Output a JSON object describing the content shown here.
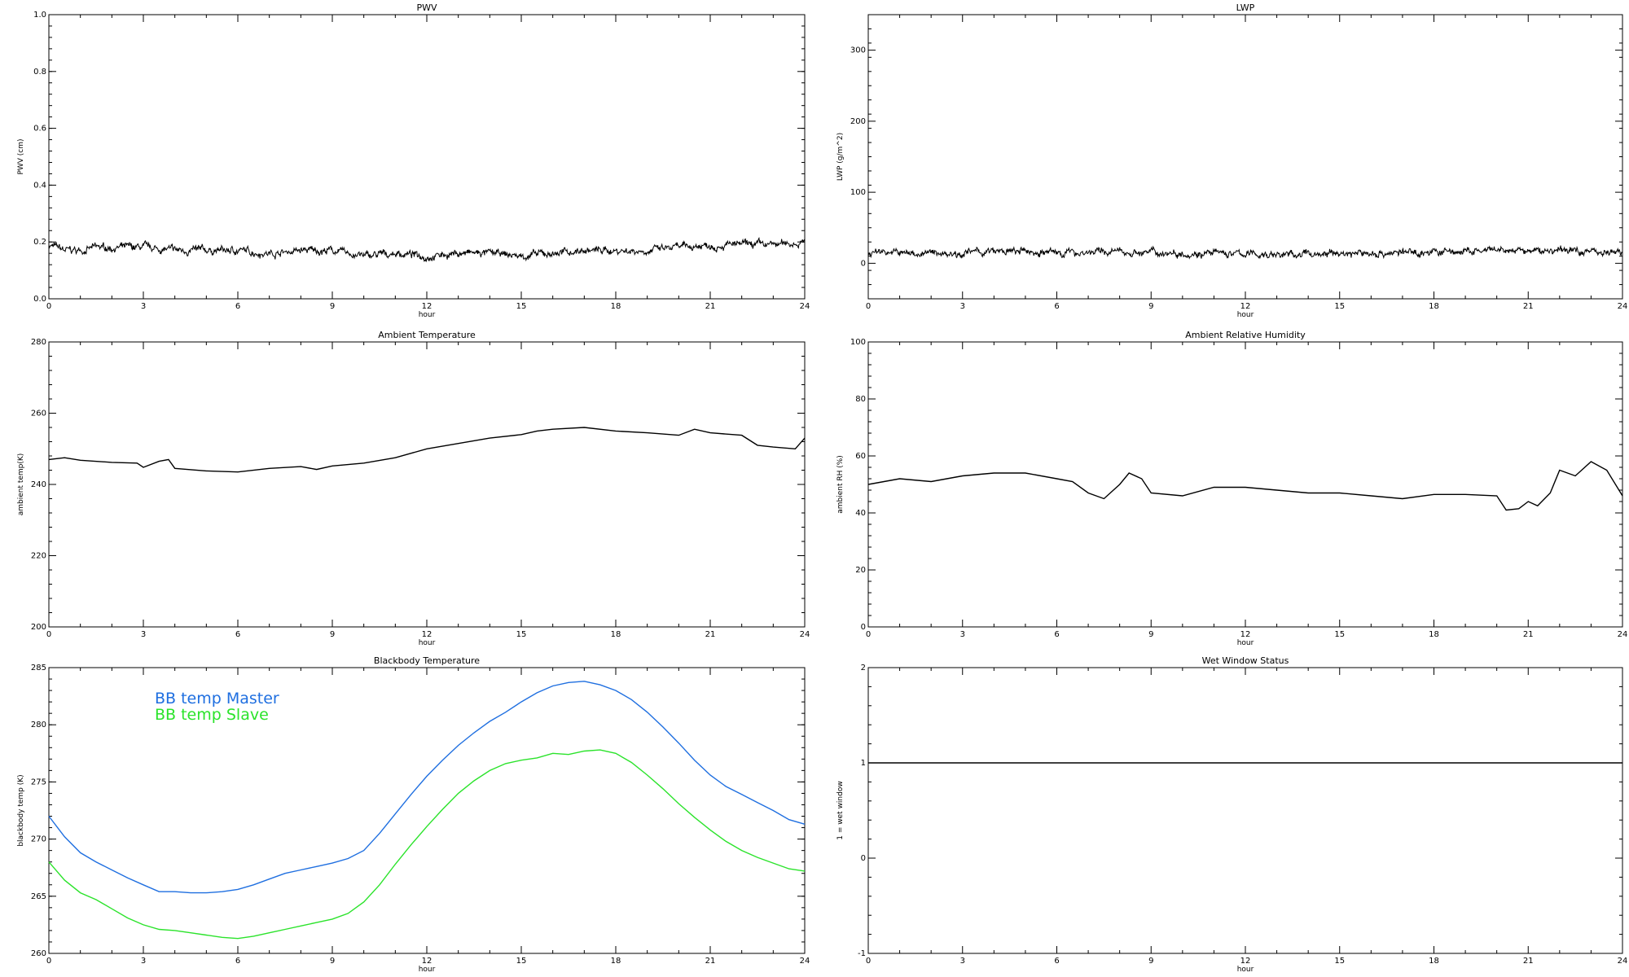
{
  "chart_data": [
    {
      "type": "line",
      "title": "PWV",
      "xlabel": "hour",
      "ylabel": "PWV (cm)",
      "xlim": [
        0,
        24
      ],
      "ylim": [
        0.0,
        1.0
      ],
      "xticks": [
        "0",
        "3",
        "6",
        "9",
        "12",
        "15",
        "18",
        "21",
        "24"
      ],
      "yticks": [
        "0.0",
        "0.2",
        "0.4",
        "0.6",
        "0.8",
        "1.0"
      ],
      "grid": false,
      "series": [
        {
          "color": "#000000",
          "noisy": true,
          "x": [
            0,
            0.5,
            1,
            1.5,
            2,
            3,
            4,
            5,
            6,
            7,
            8,
            9,
            10,
            11,
            12,
            13,
            14,
            15,
            16,
            17,
            18,
            19,
            20,
            21,
            22,
            23,
            24
          ],
          "y": [
            0.19,
            0.17,
            0.17,
            0.18,
            0.18,
            0.18,
            0.17,
            0.17,
            0.17,
            0.16,
            0.17,
            0.17,
            0.15,
            0.16,
            0.15,
            0.16,
            0.16,
            0.15,
            0.16,
            0.17,
            0.17,
            0.17,
            0.18,
            0.19,
            0.19,
            0.19,
            0.2
          ]
        }
      ]
    },
    {
      "type": "line",
      "title": "LWP",
      "xlabel": "hour",
      "ylabel": "LWP (g/m^2)",
      "xlim": [
        0,
        24
      ],
      "ylim": [
        -50,
        350
      ],
      "xticks": [
        "0",
        "3",
        "6",
        "9",
        "12",
        "15",
        "18",
        "21",
        "24"
      ],
      "yticks": [
        "0",
        "100",
        "200",
        "300"
      ],
      "ytick_values": [
        0,
        100,
        200,
        300
      ],
      "grid": false,
      "series": [
        {
          "color": "#000000",
          "noisy": true,
          "x": [
            0,
            0.5,
            1,
            2,
            3,
            4,
            5,
            6,
            7,
            8,
            9,
            10,
            11,
            12,
            13,
            14,
            15,
            16,
            17,
            18,
            19,
            20,
            21,
            22,
            23,
            24
          ],
          "y": [
            15,
            18,
            14,
            14,
            15,
            16,
            16,
            15,
            16,
            16,
            15,
            15,
            14,
            13,
            12,
            13,
            14,
            14,
            15,
            16,
            16,
            17,
            17,
            18,
            18,
            14
          ]
        }
      ]
    },
    {
      "type": "line",
      "title": "Ambient Temperature",
      "xlabel": "hour",
      "ylabel": "ambient temp(K)",
      "xlim": [
        0,
        24
      ],
      "ylim": [
        200,
        280
      ],
      "xticks": [
        "0",
        "3",
        "6",
        "9",
        "12",
        "15",
        "18",
        "21",
        "24"
      ],
      "yticks": [
        "200",
        "220",
        "240",
        "260",
        "280"
      ],
      "grid": false,
      "series": [
        {
          "color": "#000000",
          "noisy": false,
          "x": [
            0,
            0.5,
            1,
            2,
            2.8,
            3,
            3.5,
            3.8,
            4,
            5,
            6,
            7,
            8,
            8.5,
            9,
            10,
            11,
            12,
            13,
            14,
            15,
            15.5,
            16,
            17,
            18,
            19,
            20,
            20.5,
            21,
            22,
            22.5,
            23,
            23.7,
            24
          ],
          "y": [
            247,
            247.5,
            246.8,
            246.2,
            246,
            244.8,
            246.5,
            247,
            244.5,
            243.8,
            243.5,
            244.5,
            245,
            244.2,
            245.2,
            246,
            247.5,
            250,
            251.5,
            253,
            254,
            255,
            255.5,
            256,
            255,
            254.5,
            253.8,
            255.5,
            254.5,
            253.8,
            251,
            250.5,
            250,
            253
          ]
        }
      ]
    },
    {
      "type": "line",
      "title": "Ambient Relative Humidity",
      "xlabel": "hour",
      "ylabel": "ambient RH (%)",
      "xlim": [
        0,
        24
      ],
      "ylim": [
        0,
        100
      ],
      "xticks": [
        "0",
        "3",
        "6",
        "9",
        "12",
        "15",
        "18",
        "21",
        "24"
      ],
      "yticks": [
        "0",
        "20",
        "40",
        "60",
        "80",
        "100"
      ],
      "grid": false,
      "series": [
        {
          "color": "#000000",
          "noisy": false,
          "x": [
            0,
            1,
            2,
            3,
            4,
            5,
            6,
            6.5,
            7,
            7.5,
            8,
            8.3,
            8.7,
            9,
            10,
            11,
            12,
            13,
            14,
            15,
            16,
            17,
            18,
            19,
            20,
            20.3,
            20.7,
            21,
            21.3,
            21.7,
            22,
            22.5,
            23,
            23.5,
            24
          ],
          "y": [
            50,
            52,
            51,
            53,
            54,
            54,
            52,
            51,
            47,
            45,
            50,
            54,
            52,
            47,
            46,
            49,
            49,
            48,
            47,
            47,
            46,
            45,
            46.5,
            46.5,
            46,
            41,
            41.5,
            44,
            42.5,
            47,
            55,
            53,
            58,
            55,
            46
          ]
        }
      ]
    },
    {
      "type": "line",
      "title": "Blackbody Temperature",
      "xlabel": "hour",
      "ylabel": "blackbody temp (K)",
      "xlim": [
        0,
        24
      ],
      "ylim": [
        260,
        285
      ],
      "xticks": [
        "0",
        "3",
        "6",
        "9",
        "12",
        "15",
        "18",
        "21",
        "24"
      ],
      "yticks": [
        "260",
        "265",
        "270",
        "275",
        "280",
        "285"
      ],
      "grid": false,
      "legend": "top-left",
      "series": [
        {
          "name": "BB temp Master",
          "color": "#1f6fe0",
          "noisy": false,
          "x": [
            0,
            0.5,
            1,
            1.5,
            2,
            2.5,
            3,
            3.5,
            4,
            4.5,
            5,
            5.5,
            6,
            6.5,
            7,
            7.5,
            8,
            8.5,
            9,
            9.5,
            10,
            10.5,
            11,
            11.5,
            12,
            12.5,
            13,
            13.5,
            14,
            14.5,
            15,
            15.5,
            16,
            16.5,
            17,
            17.5,
            18,
            18.5,
            19,
            19.5,
            20,
            20.5,
            21,
            21.5,
            22,
            22.5,
            23,
            23.5,
            24
          ],
          "y": [
            272,
            270.2,
            268.8,
            268,
            267.3,
            266.6,
            266,
            265.4,
            265.4,
            265.3,
            265.3,
            265.4,
            265.6,
            266,
            266.5,
            267,
            267.3,
            267.6,
            267.9,
            268.3,
            269,
            270.5,
            272.2,
            273.9,
            275.5,
            276.9,
            278.2,
            279.3,
            280.3,
            281.1,
            282,
            282.8,
            283.4,
            283.7,
            283.8,
            283.5,
            283,
            282.2,
            281.1,
            279.8,
            278.4,
            276.9,
            275.6,
            274.6,
            273.9,
            273.2,
            272.5,
            271.7,
            271.3
          ]
        },
        {
          "name": "BB temp Slave",
          "color": "#2be32b",
          "noisy": false,
          "x": [
            0,
            0.5,
            1,
            1.5,
            2,
            2.5,
            3,
            3.5,
            4,
            4.5,
            5,
            5.5,
            6,
            6.5,
            7,
            7.5,
            8,
            8.5,
            9,
            9.5,
            10,
            10.5,
            11,
            11.5,
            12,
            12.5,
            13,
            13.5,
            14,
            14.5,
            15,
            15.5,
            16,
            16.5,
            17,
            17.5,
            18,
            18.5,
            19,
            19.5,
            20,
            20.5,
            21,
            21.5,
            22,
            22.5,
            23,
            23.5,
            24
          ],
          "y": [
            268,
            266.4,
            265.3,
            264.7,
            263.9,
            263.1,
            262.5,
            262.1,
            262,
            261.8,
            261.6,
            261.4,
            261.3,
            261.5,
            261.8,
            262.1,
            262.4,
            262.7,
            263,
            263.5,
            264.5,
            266,
            267.8,
            269.5,
            271.1,
            272.6,
            274,
            275.1,
            276,
            276.6,
            276.9,
            277.1,
            277.5,
            277.4,
            277.7,
            277.8,
            277.5,
            276.7,
            275.6,
            274.4,
            273.1,
            271.9,
            270.8,
            269.8,
            269,
            268.4,
            267.9,
            267.4,
            267.2
          ]
        }
      ]
    },
    {
      "type": "line",
      "title": "Wet Window Status",
      "xlabel": "hour",
      "ylabel": "1 = wet window",
      "xlim": [
        0,
        24
      ],
      "ylim": [
        -1,
        2
      ],
      "xticks": [
        "0",
        "3",
        "6",
        "9",
        "12",
        "15",
        "18",
        "21",
        "24"
      ],
      "yticks": [
        "-1",
        "0",
        "1",
        "2"
      ],
      "grid": false,
      "series": [
        {
          "color": "#000000",
          "noisy": false,
          "x": [
            0,
            24
          ],
          "y": [
            1,
            1
          ]
        }
      ]
    }
  ]
}
